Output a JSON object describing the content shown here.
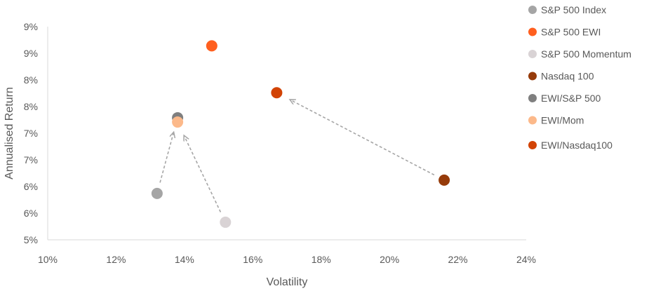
{
  "chart_data": {
    "type": "scatter",
    "title": "",
    "xlabel": "Volatility",
    "ylabel": "Annualised Return",
    "xlim": [
      10,
      24
    ],
    "ylim": [
      5,
      9
    ],
    "x_ticks": [
      10,
      12,
      14,
      16,
      18,
      20,
      22,
      24
    ],
    "x_tick_labels": [
      "10%",
      "12%",
      "14%",
      "16%",
      "18%",
      "20%",
      "22%",
      "24%"
    ],
    "y_ticks": [
      5,
      5.5,
      6,
      6.5,
      7,
      7.5,
      8,
      8.5,
      9
    ],
    "y_tick_labels": [
      "5%",
      "6%",
      "6%",
      "7%",
      "7%",
      "8%",
      "8%",
      "9%",
      "9%"
    ],
    "grid": false,
    "legend_position": "right",
    "series": [
      {
        "name": "S&P 500 Index",
        "color": "#a5a5a5",
        "x": 13.2,
        "y": 5.87
      },
      {
        "name": "S&P 500 EWI",
        "color": "#ff5f1f",
        "x": 14.8,
        "y": 8.64
      },
      {
        "name": "S&P 500 Momentum",
        "color": "#d9d3d5",
        "x": 15.2,
        "y": 5.33
      },
      {
        "name": "Nasdaq 100",
        "color": "#963b0a",
        "x": 21.6,
        "y": 6.12
      },
      {
        "name": "EWI/S&P 500",
        "color": "#7f7f7f",
        "x": 13.8,
        "y": 7.29
      },
      {
        "name": "EWI/Mom",
        "color": "#fcb98a",
        "x": 13.8,
        "y": 7.21
      },
      {
        "name": "EWI/Nasdaq100",
        "color": "#d24305",
        "x": 16.7,
        "y": 7.76
      }
    ],
    "arrows": [
      {
        "from": "S&P 500 Index",
        "to": "EWI/S&P 500"
      },
      {
        "from": "S&P 500 Momentum",
        "to": "EWI/Mom"
      },
      {
        "from": "Nasdaq 100",
        "to": "EWI/Nasdaq100"
      }
    ]
  }
}
